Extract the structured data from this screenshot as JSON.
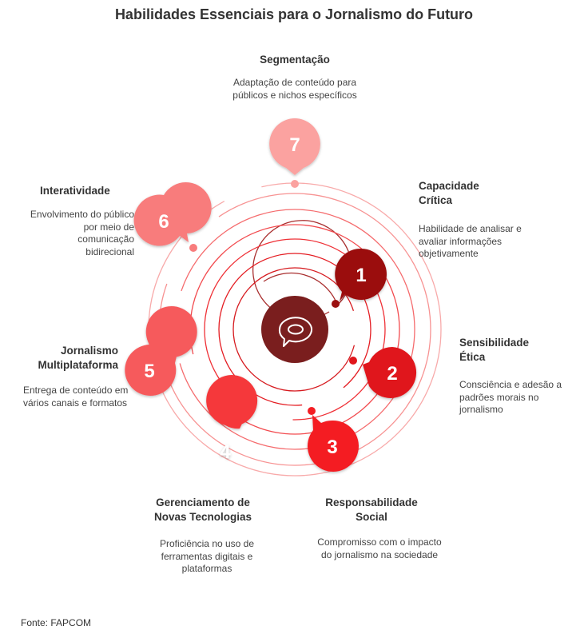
{
  "title": "Habilidades Essenciais para o Jornalismo do Futuro",
  "source": "Fonte: FAPCOM",
  "center_icon": "speech-bubble-icon",
  "colors": {
    "center": "#7a1e1e",
    "ring": "#e63946",
    "c1": "#9b1010",
    "c2": "#e0151b",
    "c3": "#f41e24",
    "c4": "#f5383b",
    "c5": "#f65a5c",
    "c6": "#f87c7c",
    "c7": "#fba2a0"
  },
  "items": [
    {
      "number": "1",
      "title_line1": "Capacidade",
      "title_line2": "Crítica",
      "desc_line1": "Habilidade de analisar e",
      "desc_line2": "avaliar informações",
      "desc_line3": "objetivamente"
    },
    {
      "number": "2",
      "title_line1": "Sensibilidade",
      "title_line2": "Ética",
      "desc_line1": "Consciência e adesão a",
      "desc_line2": "padrões morais no",
      "desc_line3": "jornalismo"
    },
    {
      "number": "3",
      "title_line1": "Responsabilidade",
      "title_line2": "Social",
      "desc_line1": "Compromisso com o impacto",
      "desc_line2": "do jornalismo na sociedade"
    },
    {
      "number": "4",
      "title_line1": "Gerenciamento de",
      "title_line2": "Novas Tecnologias",
      "desc_line1": "Proficiência no uso de",
      "desc_line2": "ferramentas digitais e",
      "desc_line3": "plataformas"
    },
    {
      "number": "5",
      "title_line1": "Jornalismo",
      "title_line2": "Multiplataforma",
      "desc_line1": "Entrega de conteúdo em",
      "desc_line2": "vários canais e formatos"
    },
    {
      "number": "6",
      "title_line1": "Interatividade",
      "desc_line1": "Envolvimento do público",
      "desc_line2": "por meio de",
      "desc_line3": "comunicação",
      "desc_line4": "bidirecional"
    },
    {
      "number": "7",
      "title_line1": "Segmentação",
      "desc_line1": "Adaptação de conteúdo para",
      "desc_line2": "públicos e nichos específicos"
    }
  ]
}
